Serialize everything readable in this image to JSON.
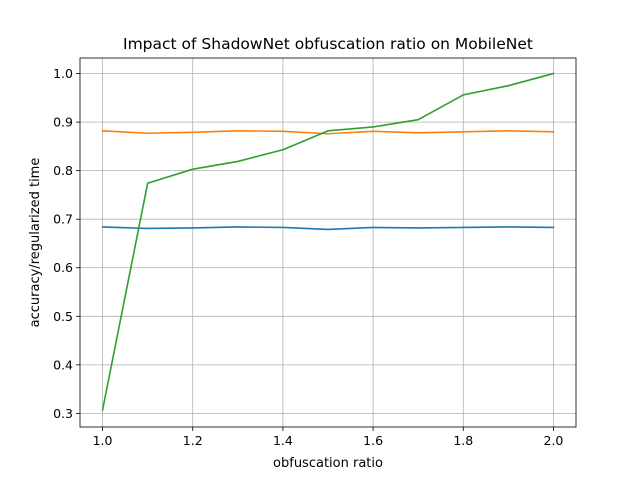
{
  "chart_data": {
    "type": "line",
    "title": "Impact of ShadowNet obfuscation ratio on MobileNet",
    "xlabel": "obfuscation ratio",
    "ylabel": "accuracy/regularized time",
    "xlim": [
      0.95,
      2.05
    ],
    "ylim": [
      0.272,
      1.032
    ],
    "xticks": [
      1.0,
      1.2,
      1.4,
      1.6,
      1.8,
      2.0
    ],
    "xtick_labels": [
      "1.0",
      "1.2",
      "1.4",
      "1.6",
      "1.8",
      "2.0"
    ],
    "yticks": [
      0.3,
      0.4,
      0.5,
      0.6,
      0.7,
      0.8,
      0.9,
      1.0
    ],
    "ytick_labels": [
      "0.3",
      "0.4",
      "0.5",
      "0.6",
      "0.7",
      "0.8",
      "0.9",
      "1.0"
    ],
    "grid": true,
    "x": [
      1.0,
      1.1,
      1.2,
      1.3,
      1.4,
      1.5,
      1.6,
      1.7,
      1.8,
      1.9,
      2.0
    ],
    "series": [
      {
        "color": "#1f77b4",
        "values": [
          0.684,
          0.681,
          0.682,
          0.684,
          0.683,
          0.679,
          0.683,
          0.682,
          0.683,
          0.684,
          0.683
        ]
      },
      {
        "color": "#ff7f0e",
        "values": [
          0.882,
          0.877,
          0.879,
          0.882,
          0.881,
          0.876,
          0.881,
          0.878,
          0.88,
          0.882,
          0.88
        ]
      },
      {
        "color": "#2ca02c",
        "values": [
          0.307,
          0.774,
          0.803,
          0.819,
          0.843,
          0.882,
          0.89,
          0.905,
          0.956,
          0.975,
          1.0
        ]
      }
    ]
  }
}
